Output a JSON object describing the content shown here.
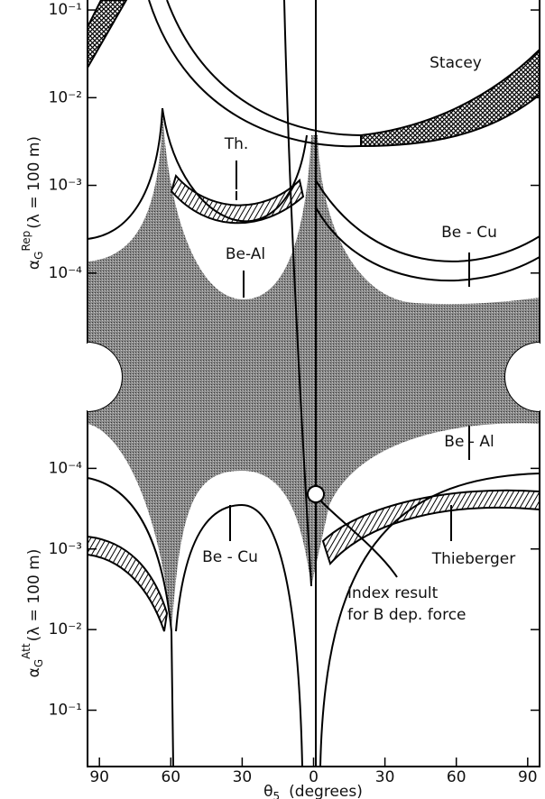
{
  "chart_data": [
    {
      "type": "line",
      "panel": "top",
      "ylabel": {
        "symbol": "α",
        "sub": "G",
        "sup": "Rep",
        "rest": "(λ = 100 m)"
      },
      "ylog": true,
      "ylim": [
        1e-05,
        0.13
      ],
      "yticks": [
        {
          "value": 0.1,
          "label": "10⁻¹"
        },
        {
          "value": 0.01,
          "label": "10⁻²"
        },
        {
          "value": 0.001,
          "label": "10⁻³"
        },
        {
          "value": 0.0001,
          "label": "10⁻⁴"
        }
      ],
      "annotations": [
        "Stacey",
        "Th.",
        "Be - Cu",
        "Be-Al"
      ]
    },
    {
      "type": "line",
      "panel": "bottom",
      "ylabel": {
        "symbol": "α",
        "sub": "G",
        "sup": "Att",
        "rest": "(λ = 100 m)"
      },
      "ylog": true,
      "ylim": [
        1e-05,
        0.5
      ],
      "yticks": [
        {
          "value": 0.0001,
          "label": "10⁻⁴"
        },
        {
          "value": 0.001,
          "label": "10⁻³"
        },
        {
          "value": 0.01,
          "label": "10⁻²"
        },
        {
          "value": 0.1,
          "label": "10⁻¹"
        }
      ],
      "xlabel": {
        "symbol": "θ",
        "sub": "5",
        "rest": "(degrees)"
      },
      "xlim": [
        -95,
        95
      ],
      "xticks": [
        {
          "value": -90,
          "label": "90"
        },
        {
          "value": -60,
          "label": "60"
        },
        {
          "value": -30,
          "label": "30"
        },
        0,
        {
          "value": 30,
          "label": "30"
        },
        {
          "value": 60,
          "label": "60"
        },
        {
          "value": 90,
          "label": "90"
        }
      ],
      "annotations": [
        "Be - Al",
        "Be - Cu",
        "Thieberger",
        "Index result",
        "for B dep. force"
      ]
    }
  ]
}
